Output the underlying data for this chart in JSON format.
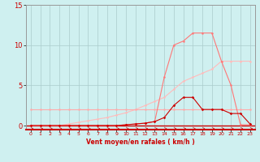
{
  "x": [
    0,
    1,
    2,
    3,
    4,
    5,
    6,
    7,
    8,
    9,
    10,
    11,
    12,
    13,
    14,
    15,
    16,
    17,
    18,
    19,
    20,
    21,
    22,
    23
  ],
  "line1": [
    2.0,
    2.0,
    2.0,
    2.0,
    2.0,
    2.0,
    2.0,
    2.0,
    2.0,
    2.0,
    2.0,
    2.0,
    2.0,
    2.0,
    2.0,
    2.0,
    2.0,
    2.0,
    2.0,
    2.0,
    2.0,
    2.0,
    2.0,
    2.0
  ],
  "line2": [
    0,
    0,
    0,
    0,
    0,
    0,
    0,
    0,
    0,
    0,
    0.1,
    0.2,
    0.3,
    0.5,
    1.0,
    2.5,
    3.5,
    3.5,
    2.0,
    2.0,
    2.0,
    1.5,
    1.5,
    0.2
  ],
  "line3": [
    0,
    0,
    0,
    0,
    0.2,
    0.4,
    0.6,
    0.8,
    1.0,
    1.3,
    1.6,
    2.0,
    2.5,
    3.0,
    3.5,
    4.5,
    5.5,
    6.0,
    6.5,
    7.0,
    8.0,
    8.0,
    8.0,
    8.0
  ],
  "line4": [
    0,
    0,
    0,
    0,
    0,
    0,
    0,
    0,
    0,
    0,
    0.1,
    0.2,
    0.3,
    0.5,
    6.0,
    10.0,
    10.5,
    11.5,
    11.5,
    11.5,
    8.0,
    5.0,
    0.1,
    0.1
  ],
  "bg_color": "#cff0f0",
  "grid_color": "#aacccc",
  "line1_color": "#ffaaaa",
  "line2_color": "#cc0000",
  "line3_color": "#ffbbbb",
  "line4_color": "#ff7777",
  "xlabel": "Vent moyen/en rafales ( km/h )",
  "ylim": [
    -0.5,
    15
  ],
  "xlim": [
    -0.5,
    23.5
  ],
  "yticks": [
    0,
    5,
    10,
    15
  ],
  "ytick_labels": [
    "0",
    "5",
    "10",
    "15"
  ],
  "xticks": [
    0,
    1,
    2,
    3,
    4,
    5,
    6,
    7,
    8,
    9,
    10,
    11,
    12,
    13,
    14,
    15,
    16,
    17,
    18,
    19,
    20,
    21,
    22,
    23
  ]
}
